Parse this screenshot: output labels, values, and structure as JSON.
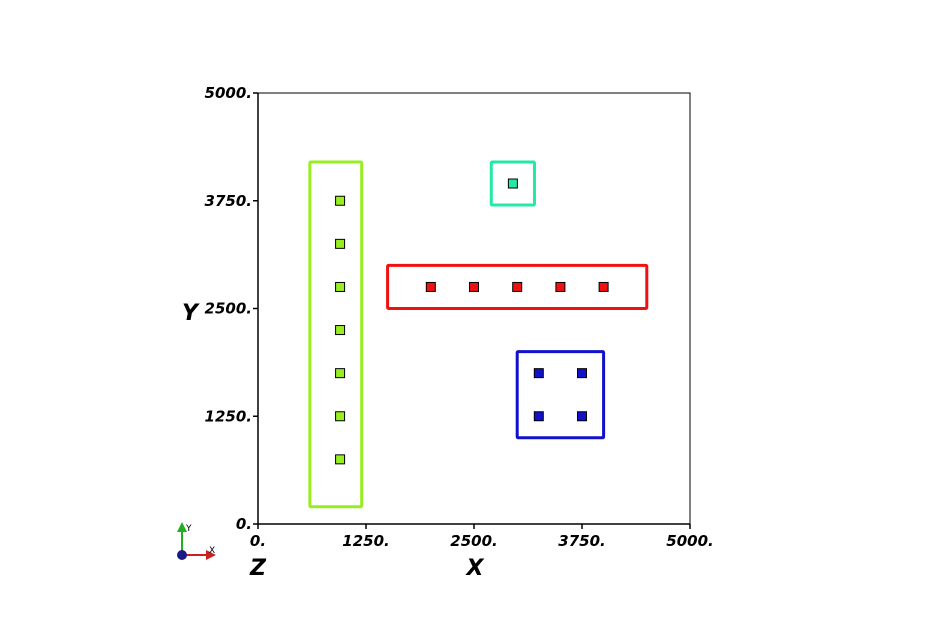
{
  "chart_data": {
    "type": "scatter",
    "title": "",
    "xlabel": "X",
    "ylabel": "Y",
    "zlabel": "Z",
    "xlim": [
      0,
      5000
    ],
    "ylim": [
      0,
      5000
    ],
    "xticks": [
      "0.",
      "1250.",
      "2500.",
      "3750.",
      "5000."
    ],
    "yticks": [
      "0.",
      "1250.",
      "2500.",
      "3750.",
      "5000."
    ],
    "grid": false,
    "axis_triad": {
      "x_label": "X",
      "y_label": "Y",
      "z_label": "Z",
      "x_color": "#cc2020",
      "y_color": "#20b020",
      "z_color": "#1a1a80"
    },
    "groups": [
      {
        "color": "#99ee22",
        "rect": {
          "x0": 600,
          "x1": 1200,
          "y0": 200,
          "y1": 4200
        },
        "points": [
          [
            950,
            3750
          ],
          [
            950,
            3250
          ],
          [
            950,
            2750
          ],
          [
            950,
            2250
          ],
          [
            950,
            1750
          ],
          [
            950,
            1250
          ],
          [
            950,
            750
          ]
        ]
      },
      {
        "color": "#22e8a8",
        "rect": {
          "x0": 2700,
          "x1": 3200,
          "y0": 3700,
          "y1": 4200
        },
        "points": [
          [
            2950,
            3950
          ]
        ]
      },
      {
        "color": "#ee1111",
        "rect": {
          "x0": 1500,
          "x1": 4500,
          "y0": 2500,
          "y1": 3000
        },
        "points": [
          [
            2000,
            2750
          ],
          [
            2500,
            2750
          ],
          [
            3000,
            2750
          ],
          [
            3500,
            2750
          ],
          [
            4000,
            2750
          ]
        ]
      },
      {
        "color": "#1111cc",
        "rect": {
          "x0": 3000,
          "x1": 4000,
          "y0": 1000,
          "y1": 2000
        },
        "points": [
          [
            3250,
            1750
          ],
          [
            3750,
            1750
          ],
          [
            3250,
            1250
          ],
          [
            3750,
            1250
          ]
        ]
      }
    ]
  }
}
